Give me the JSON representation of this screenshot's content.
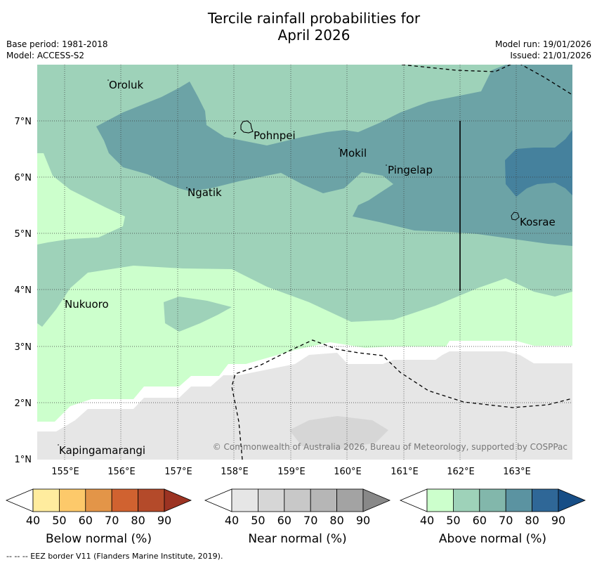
{
  "title_line1": "Tercile rainfall probabilities for",
  "title_line2": "April 2026",
  "base_period": "Base period: 1981-2018",
  "model": "Model: ACCESS-S2",
  "model_run": "Model run: 19/01/2026",
  "issued": "Issued: 21/01/2026",
  "copyright": "© Commonwealth of Australia 2026, Bureau of Meteorology, supported by COSPPac",
  "map": {
    "lat_labels": [
      "7°N",
      "6°N",
      "5°N",
      "4°N",
      "3°N",
      "2°N",
      "1°N"
    ],
    "lon_labels": [
      "155°E",
      "156°E",
      "157°E",
      "158°E",
      "159°E",
      "160°E",
      "161°E",
      "162°E",
      "163°E"
    ],
    "places": [
      {
        "name": "Oroluk"
      },
      {
        "name": "Pohnpei"
      },
      {
        "name": "Mokil"
      },
      {
        "name": "Pingelap"
      },
      {
        "name": "Ngatik"
      },
      {
        "name": "Kosrae"
      },
      {
        "name": "Nukuoro"
      },
      {
        "name": "Kapingamarangi"
      }
    ]
  },
  "colorbars": [
    {
      "label": "Below normal (%)",
      "ticks": [
        "40",
        "50",
        "60",
        "70",
        "80",
        "90"
      ],
      "colors": [
        "#ffffff",
        "#ffec9e",
        "#fdc96a",
        "#e39548",
        "#d06230",
        "#b44a2a",
        "#9c3322"
      ]
    },
    {
      "label": "Near normal (%)",
      "ticks": [
        "40",
        "50",
        "60",
        "70",
        "80",
        "90"
      ],
      "colors": [
        "#ffffff",
        "#e6e6e6",
        "#d6d6d6",
        "#c8c8c8",
        "#b6b6b6",
        "#a3a3a3",
        "#888888"
      ]
    },
    {
      "label": "Above normal (%)",
      "ticks": [
        "40",
        "50",
        "60",
        "70",
        "80",
        "90"
      ],
      "colors": [
        "#ffffff",
        "#ccffcc",
        "#9ed2b9",
        "#82b7ab",
        "#5b93a1",
        "#2f6797",
        "#174e86"
      ]
    }
  ],
  "footer": "-- -- -- EEZ border V11 (Flanders Marine Institute, 2019)."
}
